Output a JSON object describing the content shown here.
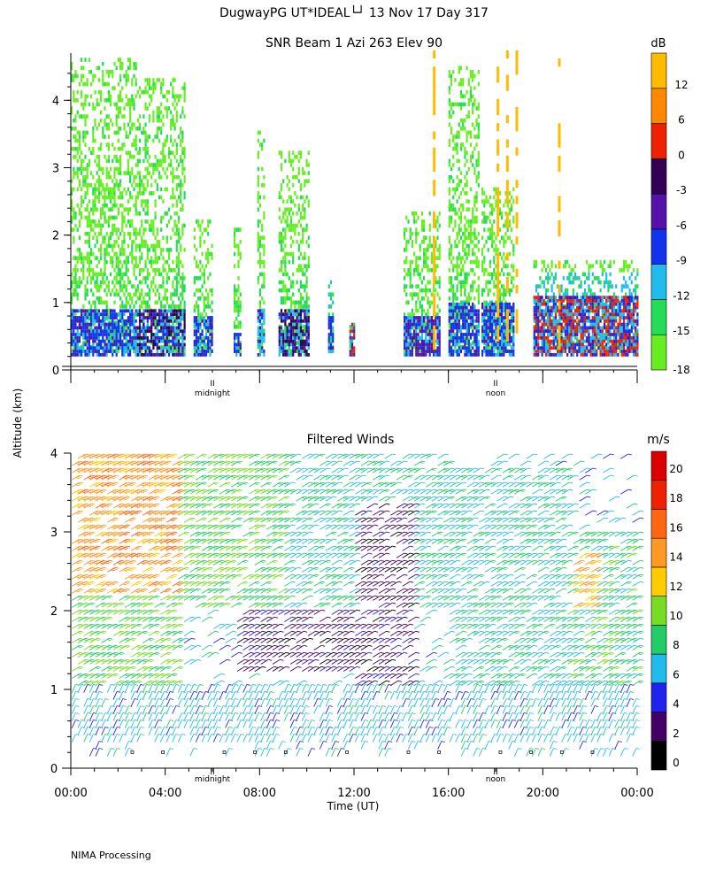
{
  "header": {
    "site_line": "DugwayPG UT*IDEAL└┘  13 Nov 17 Day 317",
    "footer": "NIMA Processing"
  },
  "shared": {
    "ylabel": "Altitude (km)",
    "xlabel": "Time (UT)",
    "time_ticks": [
      "00:00",
      "04:00",
      "08:00",
      "12:00",
      "16:00",
      "20:00",
      "00:00"
    ],
    "markers": [
      "midnight",
      "noon"
    ]
  },
  "chart_data": [
    {
      "type": "heatmap",
      "title": "SNR Beam 1 Azi 263 Elev 90",
      "ylabel": "Altitude (km)",
      "ylim": [
        0,
        4.7
      ],
      "yticks": [
        0,
        1,
        2,
        3,
        4
      ],
      "xlim_hours": [
        0,
        24
      ],
      "colorbar": {
        "unit": "dB",
        "tick_labels": [
          -18,
          -15,
          -12,
          -9,
          -6,
          -3,
          0,
          6,
          12
        ],
        "colors": [
          "#66ee22",
          "#22dd55",
          "#22bbee",
          "#1133ee",
          "#5511aa",
          "#330055",
          "#ee2200",
          "#ff8800",
          "#ffbb00"
        ]
      },
      "columns": [
        {
          "t": [
            0.0,
            2.8
          ],
          "top": 4.6,
          "lowband": [
            0.2,
            0.9
          ],
          "low_color": "#1133ee",
          "mid_color": "#66ee22"
        },
        {
          "t": [
            2.8,
            4.8
          ],
          "top": 4.3,
          "lowband": [
            0.2,
            0.9
          ],
          "low_color": "#330055",
          "mid_color": "#66ee22"
        },
        {
          "t": [
            5.2,
            6.0
          ],
          "top": 2.2,
          "lowband": [
            0.2,
            0.8
          ],
          "low_color": "#1133ee",
          "mid_color": "#66ee22"
        },
        {
          "t": [
            6.9,
            7.2
          ],
          "top": 2.1,
          "lowband": [
            0.2,
            0.5
          ],
          "low_color": "#1133ee",
          "mid_color": "#66ee22"
        },
        {
          "t": [
            7.9,
            8.2
          ],
          "top": 3.5,
          "lowband": [
            0.2,
            0.9
          ],
          "low_color": "#22bbee",
          "mid_color": "#66ee22"
        },
        {
          "t": [
            8.8,
            10.1
          ],
          "top": 3.2,
          "lowband": [
            0.2,
            0.9
          ],
          "low_color": "#330055",
          "mid_color": "#66ee22"
        },
        {
          "t": [
            10.9,
            11.1
          ],
          "top": 1.3,
          "lowband": [
            0.3,
            0.8
          ],
          "low_color": "#1133ee",
          "mid_color": "#22bbee"
        },
        {
          "t": [
            11.8,
            12.0
          ],
          "top": 0.9,
          "lowband": [
            0.2,
            0.7
          ],
          "low_color": "#ee2200",
          "mid_color": "#22dd55"
        },
        {
          "t": [
            14.1,
            15.6
          ],
          "top": 2.3,
          "lowband": [
            0.2,
            0.8
          ],
          "low_color": "#5511aa",
          "mid_color": "#66ee22"
        },
        {
          "t": [
            16.0,
            17.3
          ],
          "top": 4.5,
          "lowband": [
            0.2,
            1.0
          ],
          "low_color": "#1133ee",
          "mid_color": "#66ee22"
        },
        {
          "t": [
            17.4,
            18.8
          ],
          "top": 2.7,
          "lowband": [
            0.2,
            1.0
          ],
          "low_color": "#1133ee",
          "mid_color": "#66ee22"
        },
        {
          "t": [
            19.6,
            24.0
          ],
          "top": 1.6,
          "lowband": [
            0.2,
            1.1
          ],
          "low_color": "#ee2200",
          "mid_color": "#22bbee"
        }
      ],
      "spikes_hours": [
        15.4,
        18.1,
        18.5,
        18.9,
        20.7
      ]
    },
    {
      "type": "scatter",
      "title": "Filtered Winds",
      "ylabel": "Altitude (km)",
      "xlabel": "Time (UT)",
      "ylim": [
        0,
        4
      ],
      "yticks": [
        0,
        1,
        2,
        3,
        4
      ],
      "xlim_hours": [
        0,
        24
      ],
      "colorbar": {
        "unit": "m/s",
        "tick_labels": [
          0,
          2,
          4,
          6,
          8,
          10,
          12,
          14,
          16,
          18,
          20
        ],
        "colors": [
          "#000000",
          "#440066",
          "#2222ee",
          "#22bbee",
          "#22cc66",
          "#77dd22",
          "#ffcc00",
          "#ff9922",
          "#ff6611",
          "#ee2200",
          "#dd0000"
        ]
      },
      "wind_field": [
        {
          "t": [
            0,
            4.5
          ],
          "alt": [
            2.2,
            4.0
          ],
          "speed": 14
        },
        {
          "t": [
            0,
            4.5
          ],
          "alt": [
            1.0,
            2.2
          ],
          "speed": 9
        },
        {
          "t": [
            0,
            24
          ],
          "alt": [
            0.3,
            1.0
          ],
          "speed": 6
        },
        {
          "t": [
            4.5,
            9
          ],
          "alt": [
            2.0,
            4.0
          ],
          "speed": 9
        },
        {
          "t": [
            7,
            12
          ],
          "alt": [
            1.2,
            2.0
          ],
          "speed": 2
        },
        {
          "t": [
            9,
            16
          ],
          "alt": [
            2.0,
            4.0
          ],
          "speed": 7
        },
        {
          "t": [
            12,
            14.5
          ],
          "alt": [
            1.0,
            3.3
          ],
          "speed": 2
        },
        {
          "t": [
            16,
            21
          ],
          "alt": [
            1.0,
            3.8
          ],
          "speed": 7
        },
        {
          "t": [
            21,
            24
          ],
          "alt": [
            1.0,
            3.0
          ],
          "speed": 8
        },
        {
          "t": [
            21.2,
            22.2
          ],
          "alt": [
            2.0,
            2.7
          ],
          "speed": 13
        }
      ]
    }
  ]
}
